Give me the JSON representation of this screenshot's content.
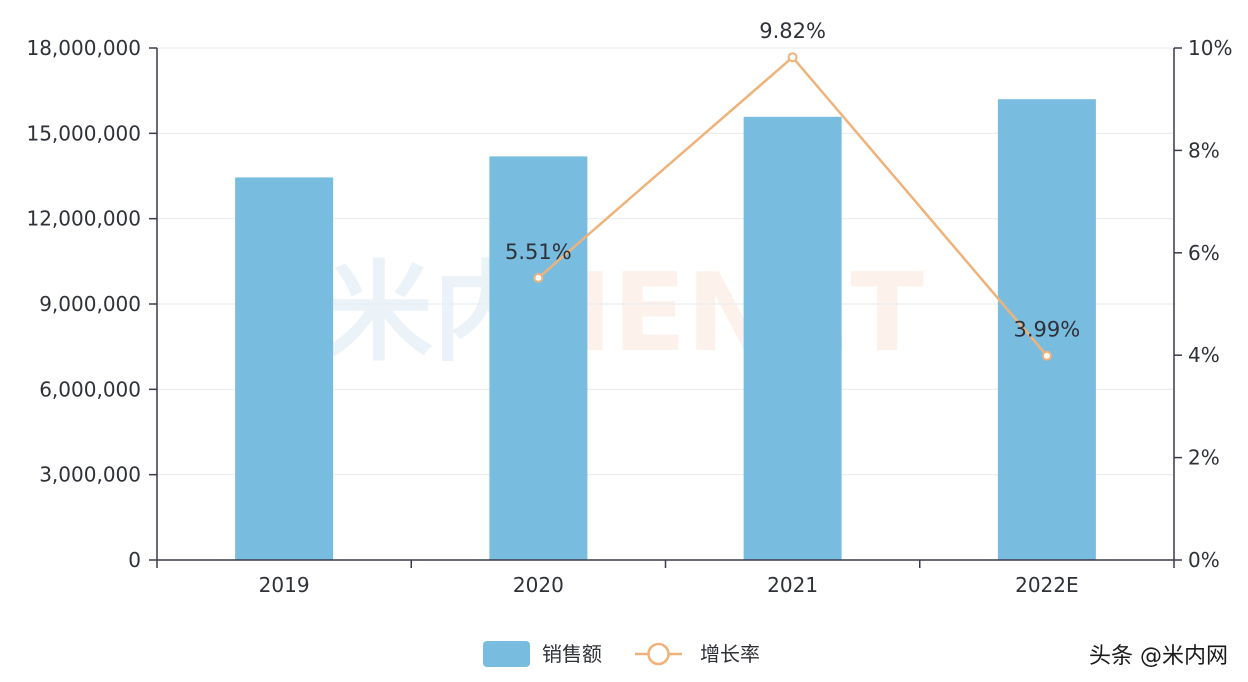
{
  "chart_data": {
    "type": "bar",
    "categories": [
      "2019",
      "2020",
      "2021",
      "2022E"
    ],
    "series": [
      {
        "name": "销售额",
        "type": "bar",
        "axis": "left",
        "color": "#78bde0",
        "values": [
          13450000,
          14190000,
          15580000,
          16200000
        ]
      },
      {
        "name": "增长率",
        "type": "line",
        "axis": "right",
        "color": "#efb27a",
        "values": [
          null,
          5.51,
          9.82,
          3.99
        ],
        "labels": [
          "",
          "5.51%",
          "9.82%",
          "3.99%"
        ]
      }
    ],
    "y_left": {
      "ylim": [
        0,
        18000000
      ],
      "ticks": [
        0,
        3000000,
        6000000,
        9000000,
        12000000,
        15000000,
        18000000
      ],
      "tick_labels": [
        "0",
        "3,000,000",
        "6,000,000",
        "9,000,000",
        "12,000,000",
        "15,000,000",
        "18,000,000"
      ]
    },
    "y_right": {
      "ylim": [
        0,
        10
      ],
      "ticks": [
        0,
        2,
        4,
        6,
        8,
        10
      ],
      "tick_labels": [
        "0%",
        "2%",
        "4%",
        "6%",
        "8%",
        "10%"
      ]
    },
    "grid": true,
    "legend": {
      "position": "bottom-center",
      "items": [
        "销售额",
        "增长率"
      ]
    }
  },
  "watermark": {
    "text": "头条 @米内网",
    "logo": "米内MENET"
  }
}
